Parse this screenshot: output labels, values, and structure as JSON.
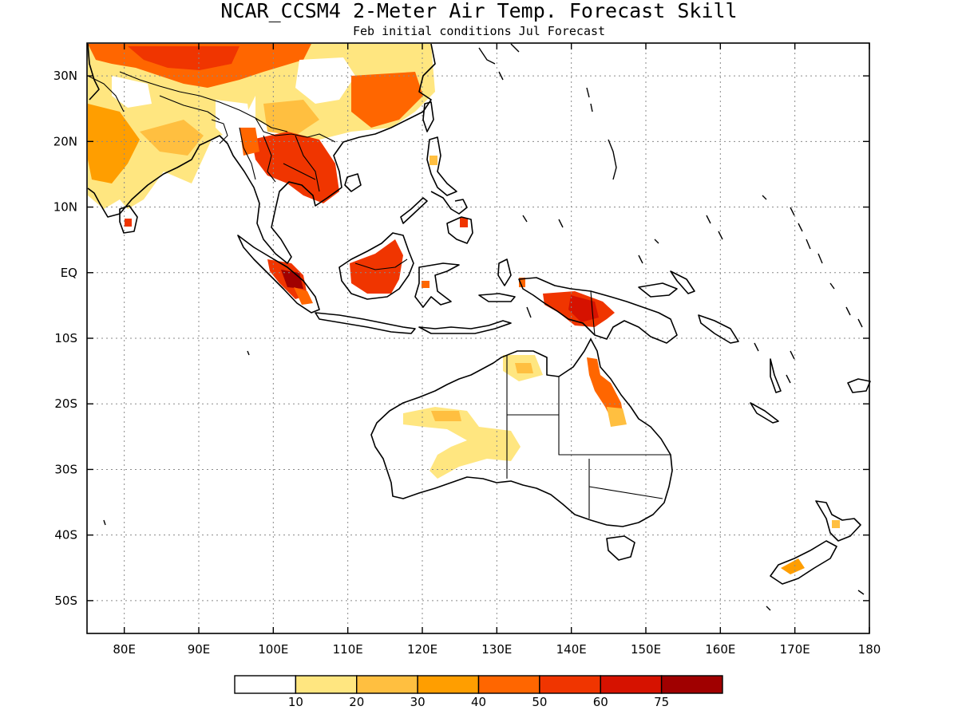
{
  "title": "NCAR_CCSM4 2-Meter Air Temp. Forecast Skill",
  "subtitle": "Feb initial conditions  Jul Forecast",
  "map": {
    "lon_range": [
      75,
      180
    ],
    "lat_range": [
      -55,
      35
    ],
    "x_ticks": [
      {
        "lon": 80,
        "label": "80E"
      },
      {
        "lon": 90,
        "label": "90E"
      },
      {
        "lon": 100,
        "label": "100E"
      },
      {
        "lon": 110,
        "label": "110E"
      },
      {
        "lon": 120,
        "label": "120E"
      },
      {
        "lon": 130,
        "label": "130E"
      },
      {
        "lon": 140,
        "label": "140E"
      },
      {
        "lon": 150,
        "label": "150E"
      },
      {
        "lon": 160,
        "label": "160E"
      },
      {
        "lon": 170,
        "label": "170E"
      },
      {
        "lon": 180,
        "label": "180"
      }
    ],
    "y_ticks": [
      {
        "lat": 30,
        "label": "30N"
      },
      {
        "lat": 20,
        "label": "20N"
      },
      {
        "lat": 10,
        "label": "10N"
      },
      {
        "lat": 0,
        "label": "EQ"
      },
      {
        "lat": -10,
        "label": "10S"
      },
      {
        "lat": -20,
        "label": "20S"
      },
      {
        "lat": -30,
        "label": "30S"
      },
      {
        "lat": -40,
        "label": "40S"
      },
      {
        "lat": -50,
        "label": "50S"
      }
    ],
    "grid": true
  },
  "legend": {
    "colors": [
      "#ffffff",
      "#ffe680",
      "#ffbf40",
      "#ff9e00",
      "#ff6600",
      "#f03500",
      "#d61200",
      "#a00000"
    ],
    "labels": [
      "10",
      "20",
      "30",
      "40",
      "50",
      "60",
      "75"
    ]
  }
}
